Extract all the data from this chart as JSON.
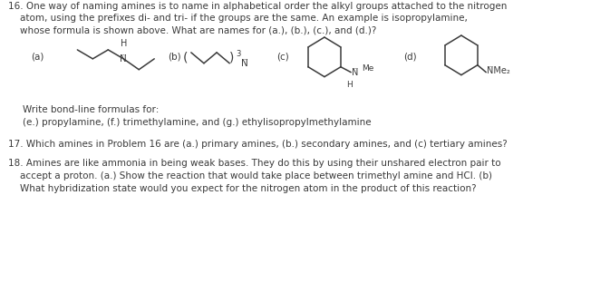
{
  "background_color": "#ffffff",
  "text_color": "#3a3a3a",
  "problem16_line1": "16. One way of naming amines is to name in alphabetical order the alkyl groups attached to the nitrogen",
  "problem16_line2": "    atom, using the prefixes di- and tri- if the groups are the same. An example is isopropylamine,",
  "problem16_line3": "    whose formula is shown above. What are names for (a.), (b.), (c.), and (d.)?",
  "write_bond_line1": "Write bond-line formulas for:",
  "write_bond_line2": "(e.) propylamine, (f.) trimethylamine, and (g.) ethylisopropylmethylamine",
  "problem17": "17. Which amines in Problem 16 are (a.) primary amines, (b.) secondary amines, and (c) tertiary amines?",
  "problem18_line1": "18. Amines are like ammonia in being weak bases. They do this by using their unshared electron pair to",
  "problem18_line2": "    accept a proton. (a.) Show the reaction that would take place between trimethyl amine and HCl. (b)",
  "problem18_line3": "    What hybridization state would you expect for the nitrogen atom in the product of this reaction?"
}
